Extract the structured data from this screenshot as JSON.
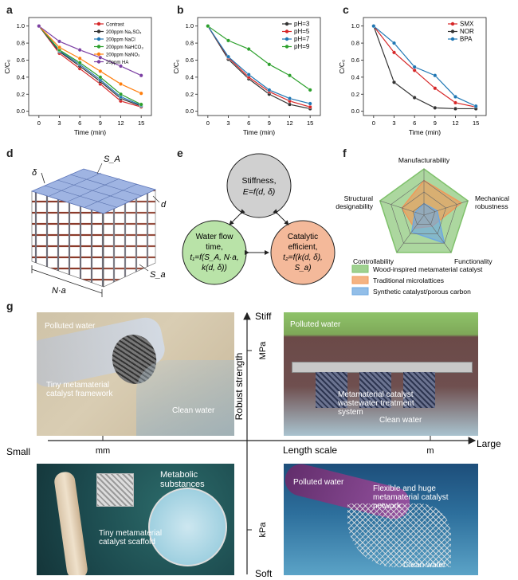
{
  "panel_labels": {
    "a": "a",
    "b": "b",
    "c": "c",
    "d": "d",
    "e": "e",
    "f": "f",
    "g": "g"
  },
  "chart_data": [
    {
      "panel": "a",
      "type": "line",
      "xlabel": "Time (min)",
      "ylabel": "C/C₀",
      "x": [
        0,
        3,
        6,
        9,
        12,
        15
      ],
      "xticks": [
        "0",
        "3",
        "6",
        "9",
        "12",
        "15"
      ],
      "yticks": [
        "0.0",
        "0.2",
        "0.4",
        "0.6",
        "0.8",
        "1.0"
      ],
      "xlim": [
        -1.5,
        16.5
      ],
      "ylim": [
        -0.05,
        1.1
      ],
      "legend": "top-right",
      "series": [
        {
          "name": "Contrast",
          "color": "#d62728",
          "values": [
            1.0,
            0.68,
            0.5,
            0.32,
            0.12,
            0.05
          ]
        },
        {
          "name": "200ppm Na₂SO₄",
          "color": "#333333",
          "values": [
            1.0,
            0.7,
            0.53,
            0.35,
            0.15,
            0.06
          ]
        },
        {
          "name": "200ppm NaCl",
          "color": "#1f77b4",
          "values": [
            1.0,
            0.71,
            0.55,
            0.37,
            0.17,
            0.07
          ]
        },
        {
          "name": "200ppm NaHCO₃",
          "color": "#2ca02c",
          "values": [
            1.0,
            0.72,
            0.57,
            0.4,
            0.2,
            0.08
          ]
        },
        {
          "name": "200ppm NaNO₃",
          "color": "#ff7f0e",
          "values": [
            1.0,
            0.75,
            0.62,
            0.47,
            0.32,
            0.21
          ]
        },
        {
          "name": "20ppm HA",
          "color": "#7b3fa3",
          "values": [
            1.0,
            0.82,
            0.72,
            0.63,
            0.53,
            0.42
          ]
        }
      ]
    },
    {
      "panel": "b",
      "type": "line",
      "xlabel": "Time (min)",
      "ylabel": "C/C₀",
      "x": [
        0,
        3,
        6,
        9,
        12,
        15
      ],
      "xticks": [
        "0",
        "3",
        "6",
        "9",
        "12",
        "15"
      ],
      "yticks": [
        "0.0",
        "0.2",
        "0.4",
        "0.6",
        "0.8",
        "1.0"
      ],
      "xlim": [
        -1.5,
        16.5
      ],
      "ylim": [
        -0.05,
        1.1
      ],
      "legend": "top-right",
      "series": [
        {
          "name": "pH=3",
          "color": "#333333",
          "values": [
            1.0,
            0.61,
            0.38,
            0.2,
            0.08,
            0.03
          ]
        },
        {
          "name": "pH=5",
          "color": "#d62728",
          "values": [
            1.0,
            0.63,
            0.4,
            0.23,
            0.12,
            0.05
          ]
        },
        {
          "name": "pH=7",
          "color": "#1f77b4",
          "values": [
            1.0,
            0.64,
            0.43,
            0.25,
            0.15,
            0.09
          ]
        },
        {
          "name": "pH=9",
          "color": "#2ca02c",
          "values": [
            1.0,
            0.83,
            0.73,
            0.55,
            0.42,
            0.25
          ]
        }
      ]
    },
    {
      "panel": "c",
      "type": "line",
      "xlabel": "Time (min)",
      "ylabel": "C/C₀",
      "x": [
        0,
        3,
        6,
        9,
        12,
        15
      ],
      "xticks": [
        "0",
        "3",
        "6",
        "9",
        "12",
        "15"
      ],
      "yticks": [
        "0.0",
        "0.2",
        "0.4",
        "0.6",
        "0.8",
        "1.0"
      ],
      "xlim": [
        -1.5,
        16.5
      ],
      "ylim": [
        -0.05,
        1.1
      ],
      "legend": "top-right",
      "series": [
        {
          "name": "SMX",
          "color": "#d62728",
          "values": [
            1.0,
            0.69,
            0.48,
            0.27,
            0.1,
            0.05
          ]
        },
        {
          "name": "NOR",
          "color": "#333333",
          "values": [
            1.0,
            0.34,
            0.16,
            0.04,
            0.03,
            0.03
          ]
        },
        {
          "name": "BPA",
          "color": "#1f77b4",
          "values": [
            1.0,
            0.8,
            0.52,
            0.42,
            0.17,
            0.06
          ]
        }
      ]
    },
    {
      "panel": "f",
      "type": "radar",
      "axes": [
        "Manufacturability",
        "Mechanical robustness",
        "Functionality",
        "Controllability",
        "Structural designability"
      ],
      "legend": "bottom",
      "series": [
        {
          "name": "Wood-inspired metamaterial catalyst",
          "color": "#7fc16b",
          "values": [
            1.0,
            1.0,
            1.0,
            1.0,
            1.0
          ]
        },
        {
          "name": "Traditional microlattices",
          "color": "#f0995a",
          "values": [
            0.75,
            0.85,
            0.3,
            0.35,
            0.5
          ]
        },
        {
          "name": "Synthetic catalyst/porous carbon",
          "color": "#6ea8e0",
          "values": [
            0.25,
            0.3,
            0.75,
            0.45,
            0.2
          ]
        }
      ]
    }
  ],
  "panel_d": {
    "delta": "δ",
    "sa_top": "S_A",
    "sa_bottom": "S_a",
    "d": "d",
    "na": "N·a"
  },
  "panel_e": {
    "top": [
      "Stiffness,",
      "E=f(d, δ)"
    ],
    "left": [
      "Water flow",
      "time,",
      "t₁=f(S_A, N·a,",
      "k(d, δ))"
    ],
    "right": [
      "Catalytic",
      "efficient,",
      "t₂=f(k(d, δ),",
      "S_a)"
    ]
  },
  "panel_g": {
    "axis_top": "Stiff",
    "axis_bottom": "Soft",
    "axis_left": "Small",
    "axis_right": "Large",
    "axis_x_title": "Length scale",
    "axis_y_title": "Robust strength",
    "tick_mm": "mm",
    "tick_m": "m",
    "tick_mpa": "MPa",
    "tick_kpa": "kPa",
    "tl": {
      "polluted": "Polluted water",
      "label": "Tiny metamaterial catalyst framework",
      "clean": "Clean water"
    },
    "tr": {
      "polluted": "Polluted water",
      "label": "Metamaterial catalyst wastewater treatment system",
      "clean": "Clean water"
    },
    "bl": {
      "title": "Metabolic substances",
      "label": "Tiny metamaterial catalyst scaffold"
    },
    "br": {
      "polluted": "Polluted water",
      "label": "Flexible and huge metamaterial catalyst network",
      "clean": "Clean water"
    }
  }
}
